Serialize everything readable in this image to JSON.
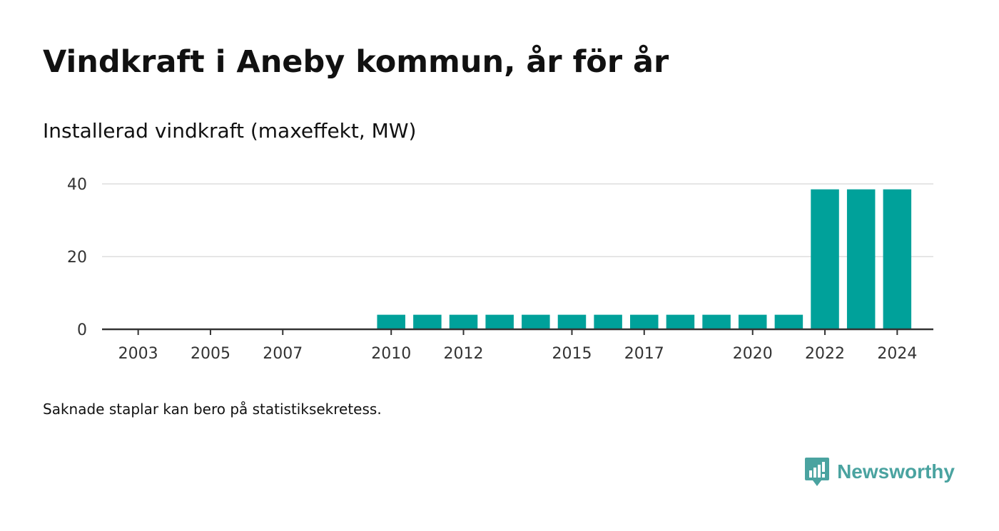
{
  "title": "Vindkraft i Aneby kommun, år för år",
  "subtitle": "Installerad vindkraft (maxeffekt, MW)",
  "footnote": "Saknade staplar kan bero på statistiksekretess.",
  "brand": {
    "name": "Newsworthy",
    "icon": "newsworthy-logo-icon"
  },
  "colors": {
    "bar": "#00a19a",
    "grid": "#dddddd",
    "axis": "#333333",
    "brand": "#4aa3a0"
  },
  "chart_data": {
    "type": "bar",
    "title": "",
    "ylabel": "",
    "xlabel": "",
    "ylim": [
      0,
      40
    ],
    "yticks": [
      0,
      20,
      40
    ],
    "xticks": [
      2003,
      2005,
      2007,
      2010,
      2012,
      2015,
      2017,
      2020,
      2022,
      2024
    ],
    "xrange": [
      2002,
      2025
    ],
    "categories": [
      2010,
      2011,
      2012,
      2013,
      2014,
      2015,
      2016,
      2017,
      2018,
      2019,
      2020,
      2021,
      2022,
      2023,
      2024
    ],
    "values": [
      4,
      4,
      4,
      4,
      4,
      4,
      4,
      4,
      4,
      4,
      4,
      4,
      38.5,
      38.5,
      38.5
    ],
    "grid": true,
    "legend": "none"
  }
}
